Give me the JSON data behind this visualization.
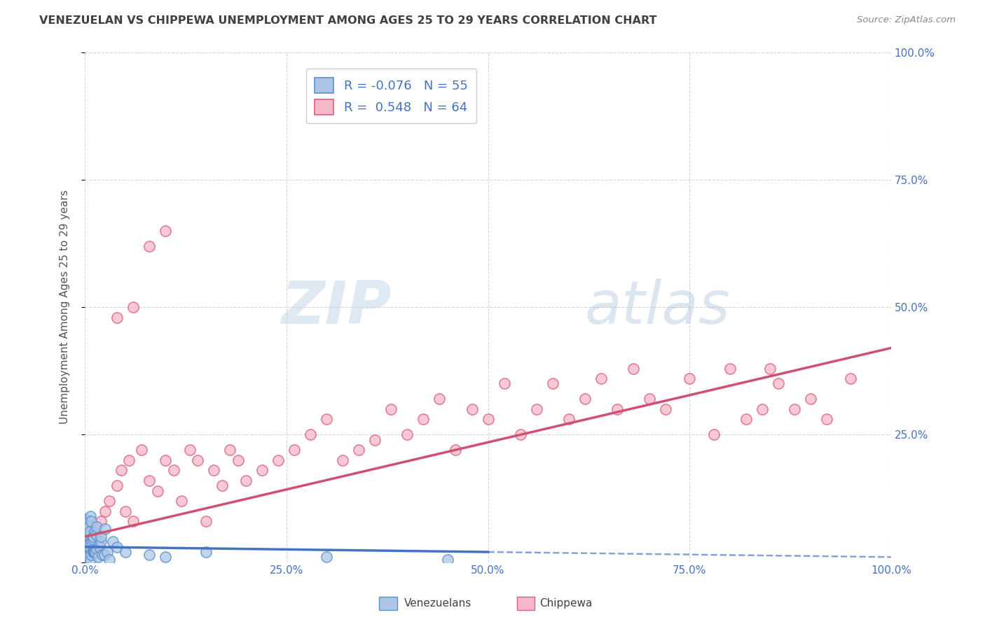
{
  "title": "VENEZUELAN VS CHIPPEWA UNEMPLOYMENT AMONG AGES 25 TO 29 YEARS CORRELATION CHART",
  "source": "Source: ZipAtlas.com",
  "ylabel": "Unemployment Among Ages 25 to 29 years",
  "xlim": [
    0,
    100
  ],
  "ylim": [
    0,
    100
  ],
  "xticks": [
    0,
    25,
    50,
    75,
    100
  ],
  "yticks": [
    0,
    25,
    50,
    75,
    100
  ],
  "xtick_labels": [
    "0.0%",
    "25.0%",
    "50.0%",
    "75.0%",
    "100.0%"
  ],
  "ytick_labels_right": [
    "",
    "25.0%",
    "50.0%",
    "75.0%",
    "100.0%"
  ],
  "venezuelan_color": "#adc6e8",
  "chippewa_color": "#f4b8c8",
  "venezuelan_edge_color": "#5b8fcc",
  "chippewa_edge_color": "#d96080",
  "venezuelan_line_color": "#4472c4",
  "chippewa_line_color": "#d05070",
  "legend_R_venezuelan": "-0.076",
  "legend_N_venezuelan": "55",
  "legend_R_chippewa": "0.548",
  "legend_N_chippewa": "64",
  "venezuelan_x": [
    0.0,
    0.0,
    0.0,
    0.0,
    0.0,
    0.0,
    0.0,
    0.1,
    0.2,
    0.2,
    0.3,
    0.3,
    0.4,
    0.4,
    0.5,
    0.5,
    0.5,
    0.5,
    0.6,
    0.6,
    0.7,
    0.7,
    0.8,
    0.8,
    0.8,
    0.9,
    1.0,
    1.0,
    1.0,
    1.0,
    1.1,
    1.2,
    1.2,
    1.3,
    1.4,
    1.5,
    1.5,
    1.6,
    1.7,
    1.8,
    2.0,
    2.0,
    2.2,
    2.4,
    2.5,
    2.8,
    3.0,
    3.5,
    4.0,
    5.0,
    8.0,
    10.0,
    15.0,
    30.0,
    45.0
  ],
  "venezuelan_y": [
    2.0,
    3.0,
    4.0,
    5.0,
    6.0,
    7.0,
    8.0,
    8.5,
    4.0,
    7.5,
    6.5,
    1.0,
    8.0,
    3.0,
    3.0,
    3.5,
    5.0,
    7.0,
    3.0,
    6.0,
    0.5,
    9.0,
    1.5,
    4.5,
    8.0,
    4.0,
    2.5,
    4.5,
    5.0,
    2.0,
    2.0,
    2.0,
    6.0,
    2.0,
    5.5,
    2.5,
    7.0,
    1.0,
    3.5,
    3.0,
    4.0,
    5.0,
    1.5,
    1.5,
    6.5,
    2.0,
    0.5,
    4.0,
    3.0,
    2.0,
    1.5,
    1.0,
    2.0,
    1.0,
    0.5
  ],
  "chippewa_x": [
    1.0,
    2.0,
    2.5,
    3.0,
    4.0,
    4.5,
    5.0,
    5.5,
    6.0,
    7.0,
    8.0,
    9.0,
    10.0,
    11.0,
    12.0,
    13.0,
    14.0,
    15.0,
    16.0,
    17.0,
    18.0,
    19.0,
    20.0,
    22.0,
    24.0,
    26.0,
    28.0,
    30.0,
    32.0,
    34.0,
    36.0,
    38.0,
    40.0,
    42.0,
    44.0,
    46.0,
    48.0,
    50.0,
    52.0,
    54.0,
    56.0,
    58.0,
    60.0,
    62.0,
    64.0,
    66.0,
    68.0,
    70.0,
    72.0,
    75.0,
    78.0,
    80.0,
    82.0,
    84.0,
    85.0,
    86.0,
    88.0,
    90.0,
    92.0,
    95.0,
    4.0,
    6.0,
    8.0,
    10.0
  ],
  "chippewa_y": [
    5.0,
    8.0,
    10.0,
    12.0,
    15.0,
    18.0,
    10.0,
    20.0,
    8.0,
    22.0,
    16.0,
    14.0,
    20.0,
    18.0,
    12.0,
    22.0,
    20.0,
    8.0,
    18.0,
    15.0,
    22.0,
    20.0,
    16.0,
    18.0,
    20.0,
    22.0,
    25.0,
    28.0,
    20.0,
    22.0,
    24.0,
    30.0,
    25.0,
    28.0,
    32.0,
    22.0,
    30.0,
    28.0,
    35.0,
    25.0,
    30.0,
    35.0,
    28.0,
    32.0,
    36.0,
    30.0,
    38.0,
    32.0,
    30.0,
    36.0,
    25.0,
    38.0,
    28.0,
    30.0,
    38.0,
    35.0,
    30.0,
    32.0,
    28.0,
    36.0,
    48.0,
    50.0,
    62.0,
    65.0
  ],
  "watermark_zip": "ZIP",
  "watermark_atlas": "atlas",
  "background_color": "#ffffff",
  "grid_color": "#cccccc",
  "title_color": "#404040",
  "axis_label_color": "#4472c4",
  "ylabel_color": "#555555"
}
